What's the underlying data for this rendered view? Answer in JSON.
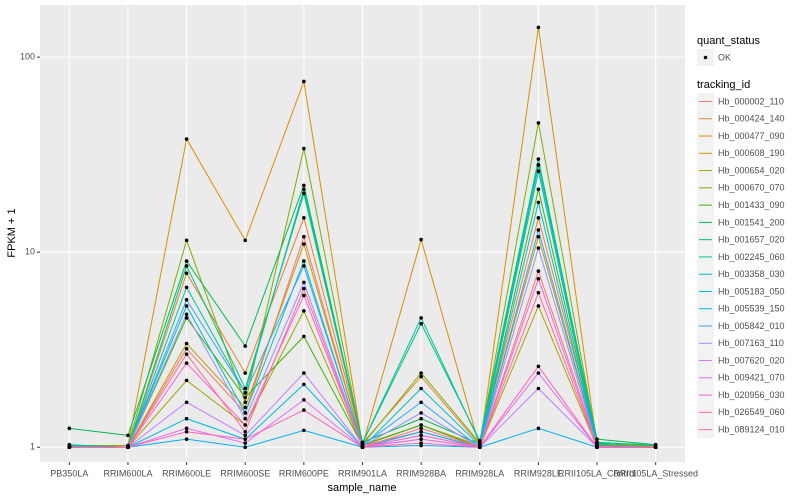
{
  "chart_data": {
    "type": "line",
    "x_label": "sample_name",
    "y_label": "FPKM + 1",
    "y_scale": "log",
    "grid": true,
    "categories": [
      "PB350LA",
      "RRIM600LA",
      "RRIM600LE",
      "RRIM600SE",
      "RRIM600PE",
      "RRIM901LA",
      "RRIM928BA",
      "RRIM928LA",
      "RRIM928LE",
      "RRII105LA_Control",
      "RRII105LA_Stressed"
    ],
    "ylim": [
      0.84,
      185
    ],
    "yticks": [
      1,
      10,
      100
    ],
    "point_legend": {
      "title": "quant_status",
      "label": "OK",
      "color": "#000000"
    },
    "legend_title": "tracking_id",
    "series": [
      {
        "name": "Hb_000002_110",
        "color": "#F8766D",
        "values": [
          1.02,
          1.0,
          3.2,
          1.5,
          12,
          1.02,
          1.2,
          1.0,
          8,
          1.02,
          1.0
        ]
      },
      {
        "name": "Hb_000424_140",
        "color": "#EA8331",
        "values": [
          1.0,
          1.0,
          7.8,
          2.4,
          15,
          1.05,
          2.3,
          1.03,
          15,
          1.05,
          1.02
        ]
      },
      {
        "name": "Hb_000477_090",
        "color": "#D89000",
        "values": [
          1.0,
          1.02,
          38,
          11.5,
          75,
          1.02,
          11.6,
          1.0,
          142,
          1.02,
          1.0
        ]
      },
      {
        "name": "Hb_000608_190",
        "color": "#C09B00",
        "values": [
          1.01,
          1.0,
          3.4,
          1.6,
          11,
          1.03,
          1.3,
          1.02,
          12,
          1.03,
          1.01
        ]
      },
      {
        "name": "Hb_000654_020",
        "color": "#A3A500",
        "values": [
          1.0,
          1.0,
          2.2,
          1.3,
          5,
          1.0,
          1.1,
          1.0,
          5.3,
          1.0,
          1.0
        ]
      },
      {
        "name": "Hb_000670_070",
        "color": "#7CAE00",
        "values": [
          1.02,
          1.02,
          11.5,
          1.7,
          34,
          1.03,
          2.4,
          1.05,
          46,
          1.04,
          1.02
        ]
      },
      {
        "name": "Hb_001433_090",
        "color": "#39B600",
        "values": [
          1.01,
          1.0,
          4.6,
          1.8,
          3.7,
          1.02,
          1.3,
          1.0,
          21,
          1.03,
          1.0
        ]
      },
      {
        "name": "Hb_001541_200",
        "color": "#00BB4E",
        "values": [
          1.25,
          1.15,
          9,
          3.3,
          22,
          1.06,
          1.4,
          1.04,
          28,
          1.1,
          1.03
        ]
      },
      {
        "name": "Hb_001657_020",
        "color": "#00BF7D",
        "values": [
          1.03,
          1.0,
          8.5,
          2.0,
          20,
          1.05,
          4.3,
          1.08,
          30,
          1.06,
          1.02
        ]
      },
      {
        "name": "Hb_002245_060",
        "color": "#00C1A3",
        "values": [
          1.02,
          1.0,
          6.6,
          1.9,
          21,
          1.05,
          4.6,
          1.06,
          28,
          1.05,
          1.03
        ]
      },
      {
        "name": "Hb_003358_030",
        "color": "#00BFC4",
        "values": [
          1.01,
          1.0,
          5.3,
          1.5,
          9,
          1.0,
          2.0,
          1.02,
          26,
          1.02,
          1.0
        ]
      },
      {
        "name": "Hb_005183_050",
        "color": "#00BAE0",
        "values": [
          1.0,
          1.0,
          1.4,
          1.1,
          2.1,
          1.0,
          1.2,
          1.0,
          18,
          1.0,
          1.0
        ]
      },
      {
        "name": "Hb_005539_150",
        "color": "#00B0F6",
        "values": [
          1.0,
          1.0,
          1.1,
          1.0,
          1.22,
          1.0,
          1.02,
          1.0,
          1.25,
          1.0,
          1.0
        ]
      },
      {
        "name": "Hb_005842_010",
        "color": "#35A2FF",
        "values": [
          1.0,
          1.0,
          5.7,
          1.9,
          8.5,
          1.02,
          1.7,
          1.0,
          13,
          1.02,
          1.0
        ]
      },
      {
        "name": "Hb_007163_110",
        "color": "#9590FF",
        "values": [
          1.0,
          1.0,
          4.8,
          1.4,
          7,
          1.01,
          1.5,
          1.0,
          10.5,
          1.01,
          1.0
        ]
      },
      {
        "name": "Hb_007620_020",
        "color": "#C77CFF",
        "values": [
          1.0,
          1.0,
          1.7,
          1.15,
          2.4,
          1.0,
          1.15,
          1.0,
          2.0,
          1.0,
          1.0
        ]
      },
      {
        "name": "Hb_009421_070",
        "color": "#E76BF3",
        "values": [
          1.0,
          1.0,
          1.25,
          1.05,
          1.75,
          1.0,
          1.1,
          1.0,
          2.4,
          1.0,
          1.0
        ]
      },
      {
        "name": "Hb_020956_030",
        "color": "#FA62DB",
        "values": [
          1.0,
          1.0,
          2.7,
          1.3,
          6,
          1.0,
          1.15,
          1.0,
          7.3,
          1.0,
          1.0
        ]
      },
      {
        "name": "Hb_026549_060",
        "color": "#FF62BC",
        "values": [
          1.0,
          1.0,
          1.2,
          1.1,
          1.55,
          1.0,
          1.05,
          1.0,
          2.6,
          1.0,
          1.0
        ]
      },
      {
        "name": "Hb_089124_010",
        "color": "#FF6C91",
        "values": [
          1.0,
          1.0,
          3.0,
          1.2,
          6.5,
          1.0,
          1.25,
          1.0,
          6.2,
          1.0,
          1.0
        ]
      }
    ]
  }
}
